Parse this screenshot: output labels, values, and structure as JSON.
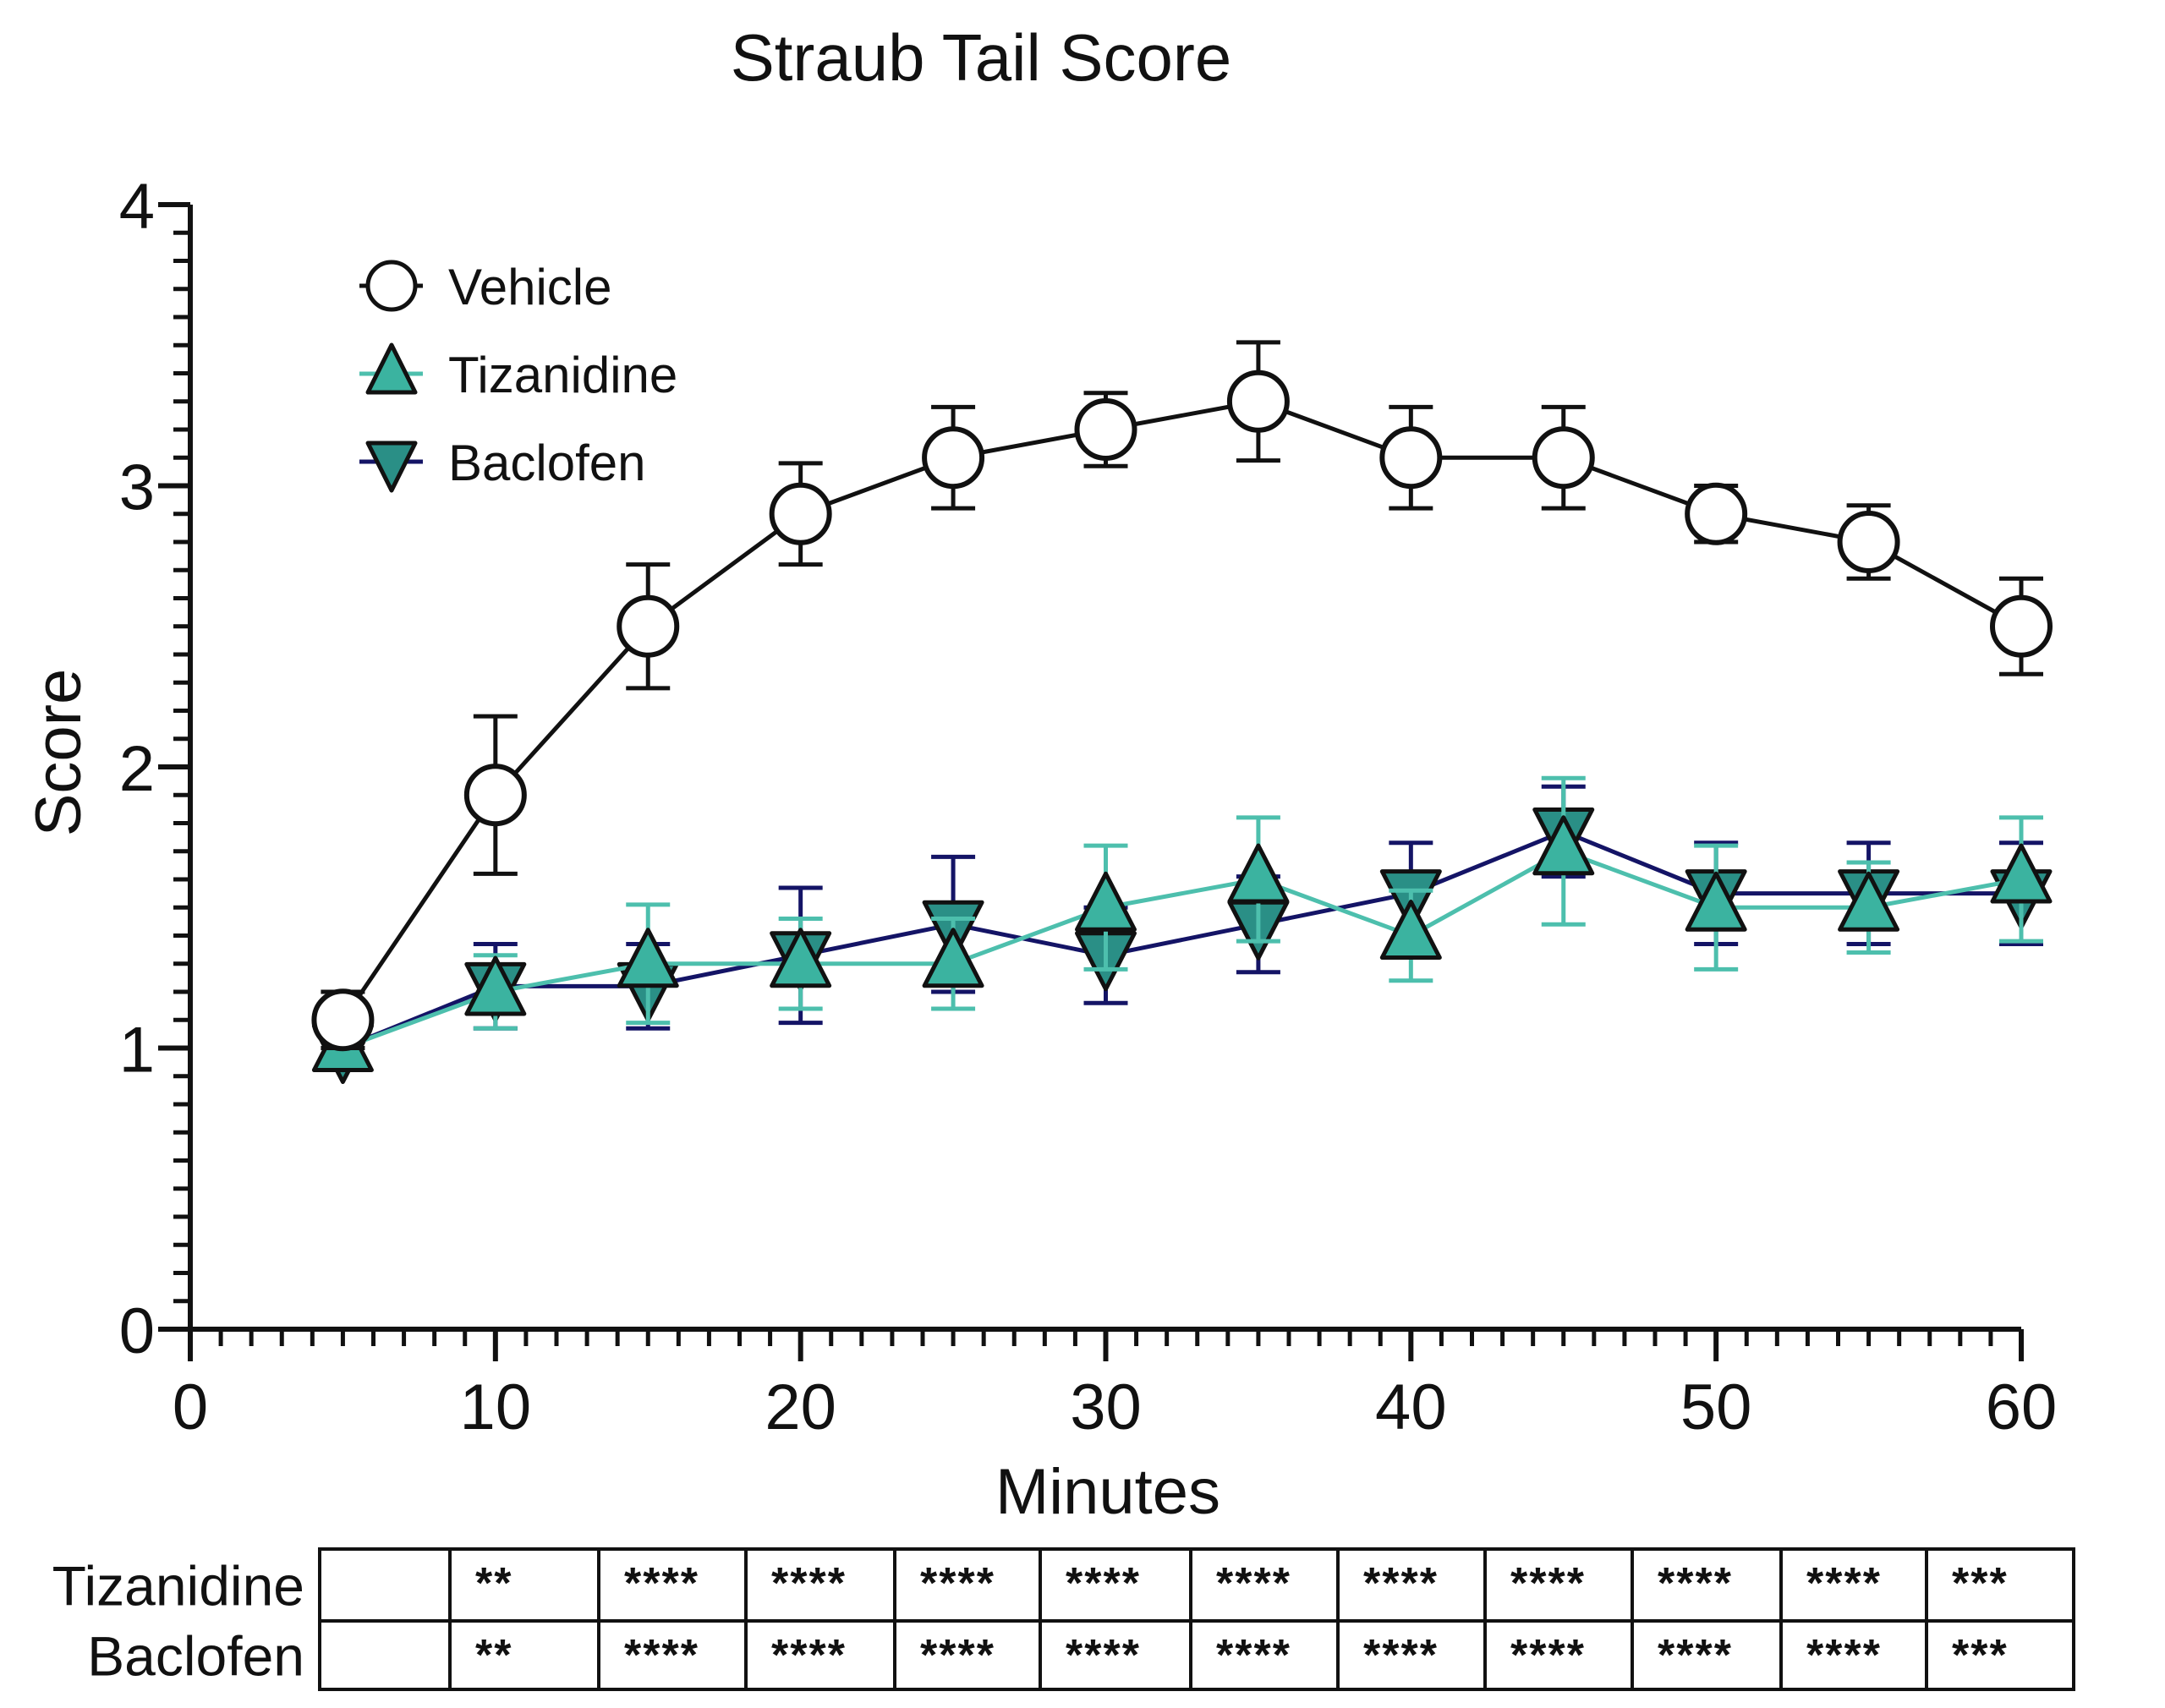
{
  "chart_data": {
    "type": "line",
    "title": "Straub Tail Score",
    "xlabel": "Minutes",
    "ylabel": "Score",
    "xlim": [
      0,
      60
    ],
    "ylim": [
      0,
      4
    ],
    "x_ticks": [
      0,
      10,
      20,
      30,
      40,
      50,
      60
    ],
    "y_ticks": [
      0,
      1,
      2,
      3,
      4
    ],
    "x_ticks_labels": [
      "0",
      "10",
      "20",
      "30",
      "40",
      "50",
      "60"
    ],
    "y_ticks_labels": [
      "0",
      "1",
      "2",
      "3",
      "4"
    ],
    "grid": false,
    "legend_position": "top-left",
    "x": [
      5,
      10,
      15,
      20,
      25,
      30,
      35,
      40,
      45,
      50,
      55,
      60
    ],
    "series": [
      {
        "name": "Vehicle",
        "marker": "circle-open",
        "line_color": "#111111",
        "fill": "#ffffff",
        "values": [
          1.1,
          1.9,
          2.5,
          2.9,
          3.1,
          3.2,
          3.3,
          3.1,
          3.1,
          2.9,
          2.8,
          2.5
        ],
        "error": [
          0.1,
          0.28,
          0.22,
          0.18,
          0.18,
          0.13,
          0.21,
          0.18,
          0.18,
          0.1,
          0.13,
          0.17
        ]
      },
      {
        "name": "Tizanidine",
        "marker": "triangle-up",
        "line_color": "#4dbfad",
        "fill": "#3bb3a0",
        "values": [
          1.0,
          1.2,
          1.3,
          1.3,
          1.3,
          1.5,
          1.6,
          1.4,
          1.7,
          1.5,
          1.5,
          1.6
        ],
        "error": [
          0.0,
          0.13,
          0.21,
          0.16,
          0.16,
          0.22,
          0.22,
          0.16,
          0.26,
          0.22,
          0.16,
          0.22
        ]
      },
      {
        "name": "Baclofen",
        "marker": "triangle-down",
        "line_color": "#141466",
        "fill": "#2a8f86",
        "values": [
          1.0,
          1.22,
          1.22,
          1.33,
          1.44,
          1.33,
          1.44,
          1.55,
          1.77,
          1.55,
          1.55,
          1.55
        ],
        "error": [
          0.0,
          0.15,
          0.15,
          0.24,
          0.24,
          0.17,
          0.17,
          0.18,
          0.16,
          0.18,
          0.18,
          0.18
        ]
      }
    ],
    "significance_table": {
      "rows": [
        {
          "label": "Tizanidine",
          "cells": [
            "",
            "**",
            "****",
            "****",
            "****",
            "****",
            "****",
            "****",
            "****",
            "****",
            "****",
            "***"
          ]
        },
        {
          "label": "Baclofen",
          "cells": [
            "",
            "**",
            "****",
            "****",
            "****",
            "****",
            "****",
            "****",
            "****",
            "****",
            "****",
            "***"
          ]
        }
      ]
    }
  }
}
